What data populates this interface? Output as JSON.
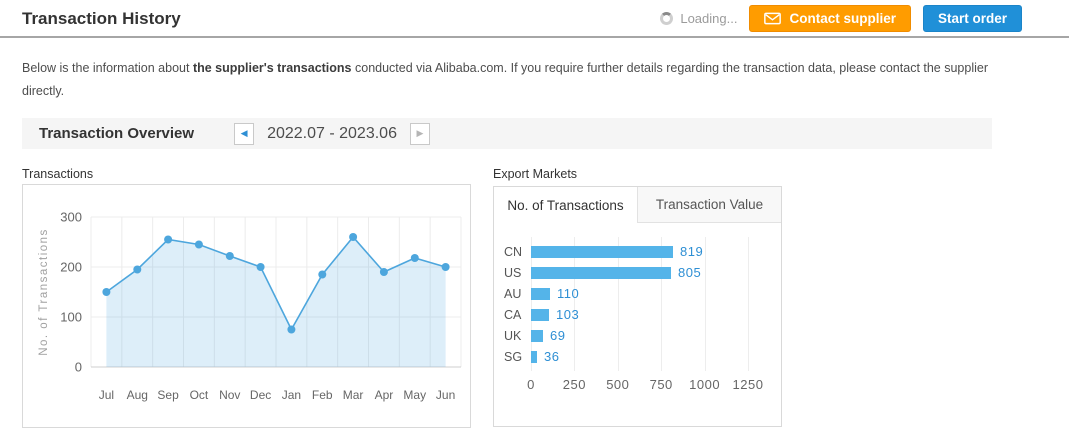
{
  "header": {
    "title": "Transaction History",
    "loading_label": "Loading...",
    "contact_button": "Contact supplier",
    "start_button": "Start order"
  },
  "intro": {
    "text_before": "Below is the information about ",
    "text_bold": "the supplier's transactions",
    "text_after": " conducted via Alibaba.com. If you require further details regarding the transaction data, please contact the supplier",
    "text_line2": "directly."
  },
  "overview": {
    "title": "Transaction Overview",
    "date_range": "2022.07 - 2023.06",
    "prev_icon": "◀",
    "next_icon": "▶"
  },
  "colors": {
    "accent_orange": "#ff9c00",
    "accent_blue": "#2090d8",
    "chart_line": "#4da6dd",
    "bar_fill": "#54b4e9",
    "value_text": "#2e8fd4"
  },
  "chart_data": [
    {
      "type": "area",
      "title": "Transactions",
      "x": [
        "Jul",
        "Aug",
        "Sep",
        "Oct",
        "Nov",
        "Dec",
        "Jan",
        "Feb",
        "Mar",
        "Apr",
        "May",
        "Jun"
      ],
      "series": [
        {
          "name": "No. of Transactions",
          "values": [
            150,
            195,
            255,
            245,
            222,
            200,
            75,
            185,
            260,
            190,
            218,
            200
          ]
        }
      ],
      "xlabel": "",
      "ylabel": "No. of Transactions",
      "ylim": [
        0,
        300
      ],
      "yticks": [
        0,
        100,
        200,
        300
      ],
      "grid": true,
      "legend": "none"
    },
    {
      "type": "bar",
      "orientation": "horizontal",
      "title": "Export Markets",
      "tabs": [
        "No. of Transactions",
        "Transaction Value"
      ],
      "active_tab": "No. of Transactions",
      "categories": [
        "CN",
        "US",
        "AU",
        "CA",
        "UK",
        "SG"
      ],
      "values": [
        819,
        805,
        110,
        103,
        69,
        36
      ],
      "xticks": [
        0,
        250,
        500,
        750,
        1000,
        1250
      ],
      "xlim": [
        0,
        1250
      ],
      "grid": true,
      "legend": "none"
    }
  ]
}
